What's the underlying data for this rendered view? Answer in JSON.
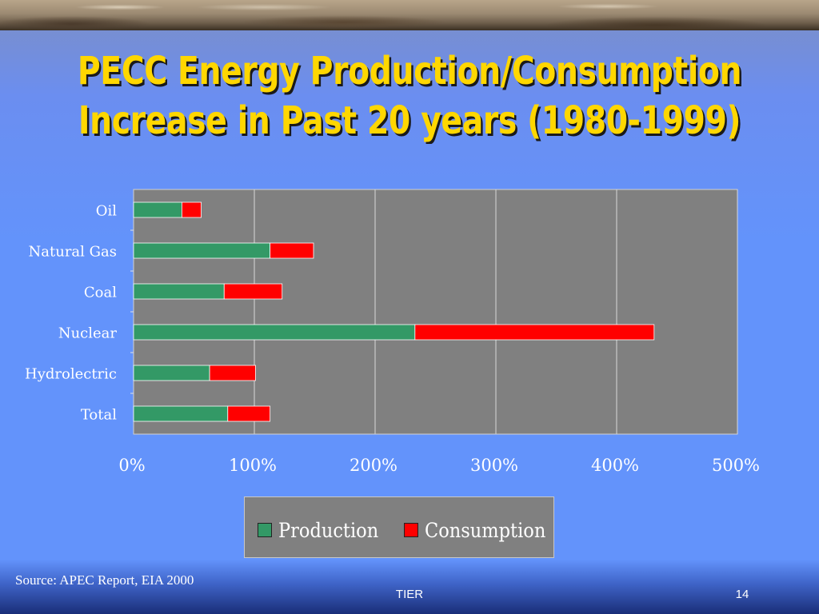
{
  "slide": {
    "title_line1": "PECC Energy Production/Consumption",
    "title_line2": "Increase in Past 20 years (1980-1999)",
    "source": "Source: APEC Report, EIA 2000",
    "footer_center": "TIER",
    "page_number": "14"
  },
  "colors": {
    "production": "#339966",
    "consumption": "#ff0000",
    "plot_background": "#808080",
    "title": "#ffd700",
    "slide_background": "#6393fb"
  },
  "legend": {
    "production_label": "Production",
    "consumption_label": "Consumption"
  },
  "chart_data": {
    "type": "bar",
    "orientation": "horizontal",
    "stacked": true,
    "categories": [
      "Oil",
      "Natural Gas",
      "Coal",
      "Nuclear",
      "Hydrolectric",
      "Total"
    ],
    "series": [
      {
        "name": "Production",
        "values": [
          40,
          113,
          75,
          233,
          63,
          78
        ]
      },
      {
        "name": "Consumption",
        "values": [
          16,
          36,
          48,
          198,
          38,
          35
        ]
      }
    ],
    "xlim": [
      0,
      500
    ],
    "xticks": [
      "0%",
      "100%",
      "200%",
      "300%",
      "400%",
      "500%"
    ],
    "title": "",
    "xlabel": "",
    "ylabel": "",
    "grid": true,
    "legend_position": "bottom"
  }
}
